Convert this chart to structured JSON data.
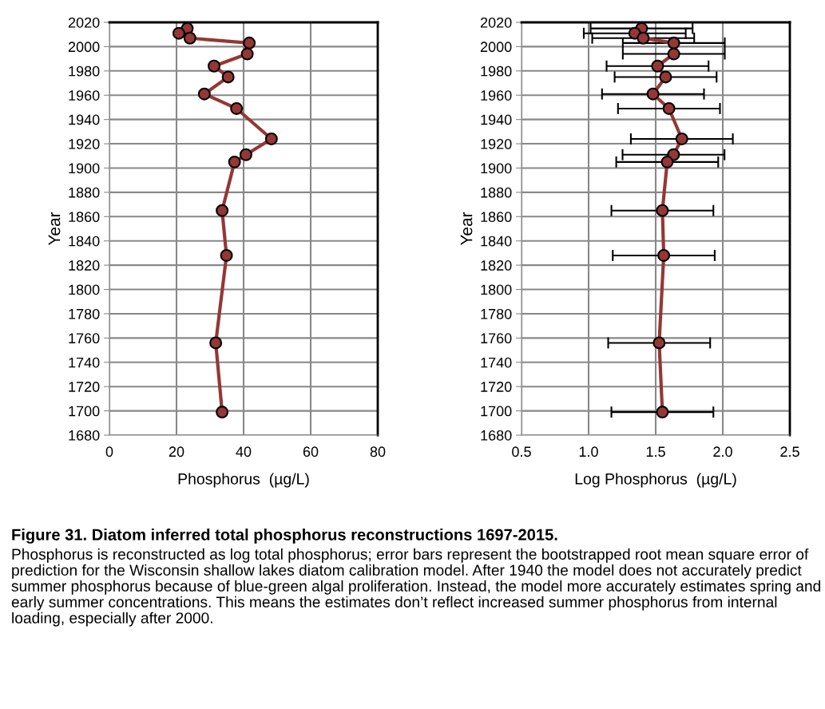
{
  "chart_data": [
    {
      "type": "line",
      "orientation": "horizontal",
      "xlabel": "Phosphorus  (µg/L)",
      "ylabel": "Year",
      "x": [
        2015,
        2011,
        2007,
        2003,
        1994,
        1984,
        1975,
        1961,
        1949,
        1924,
        1911,
        1905,
        1865,
        1828,
        1756,
        1699
      ],
      "series": [
        {
          "color": "#953735",
          "values": [
            23.2,
            20.7,
            24.0,
            41.7,
            41.1,
            31.2,
            35.4,
            28.3,
            37.9,
            48.3,
            40.7,
            37.3,
            33.6,
            34.9,
            31.7,
            33.6
          ]
        }
      ],
      "xlim": [
        0,
        80
      ],
      "xticks": [
        0,
        20,
        40,
        60,
        80
      ],
      "ylim": [
        1680,
        2020
      ],
      "yticks": [
        1680,
        1700,
        1720,
        1740,
        1760,
        1780,
        1800,
        1820,
        1840,
        1860,
        1880,
        1900,
        1920,
        1940,
        1960,
        1980,
        2000,
        2020
      ],
      "grid": true,
      "marker": "circle",
      "line_style": "solid"
    },
    {
      "type": "line",
      "orientation": "horizontal",
      "xlabel": "Log Phosphorus  (µg/L)",
      "ylabel": "Year",
      "x": [
        2015,
        2011,
        2007,
        2003,
        1994,
        1984,
        1975,
        1961,
        1949,
        1924,
        1911,
        1905,
        1865,
        1828,
        1756,
        1699
      ],
      "series": [
        {
          "color": "#953735",
          "values": [
            1.395,
            1.344,
            1.407,
            1.635,
            1.635,
            1.514,
            1.574,
            1.48,
            1.599,
            1.695,
            1.633,
            1.586,
            1.55,
            1.56,
            1.526,
            1.55
          ],
          "errors": [
            0.38,
            0.38,
            0.38,
            0.38,
            0.38,
            0.38,
            0.38,
            0.38,
            0.38,
            0.38,
            0.38,
            0.38,
            0.38,
            0.38,
            0.38,
            0.38
          ]
        }
      ],
      "xlim": [
        0.5,
        2.5
      ],
      "xticks": [
        {
          "value": 0.5,
          "label": "0.5"
        },
        {
          "value": 1.0,
          "label": "1.0"
        },
        {
          "value": 1.5,
          "label": "1.5"
        },
        {
          "value": 2.0,
          "label": "2.0"
        },
        {
          "value": 2.5,
          "label": "2.5"
        }
      ],
      "ylim": [
        1680,
        2020
      ],
      "yticks": [
        1680,
        1700,
        1720,
        1740,
        1760,
        1780,
        1800,
        1820,
        1840,
        1860,
        1880,
        1900,
        1920,
        1940,
        1960,
        1980,
        2000,
        2020
      ],
      "grid": true,
      "marker": "circle",
      "line_style": "solid",
      "annotations": [
        "Figure 31. Diatom inferred total phosphorus reconstructions 1697-2015.",
        "Phosphorus is reconstructed as log total phosphorus; error bars represent the bootstrapped root mean square error of prediction for the Wisconsin shallow lakes diatom calibration model. After 1940 the model does not accurately predict summer phosphorus because of blue-green algal proliferation. Instead, the model more accurately estimates spring and early summer concentrations. This means the estimates don’t reflect increased summer phosphorus from internal loading, especially after 2000."
      ]
    }
  ]
}
